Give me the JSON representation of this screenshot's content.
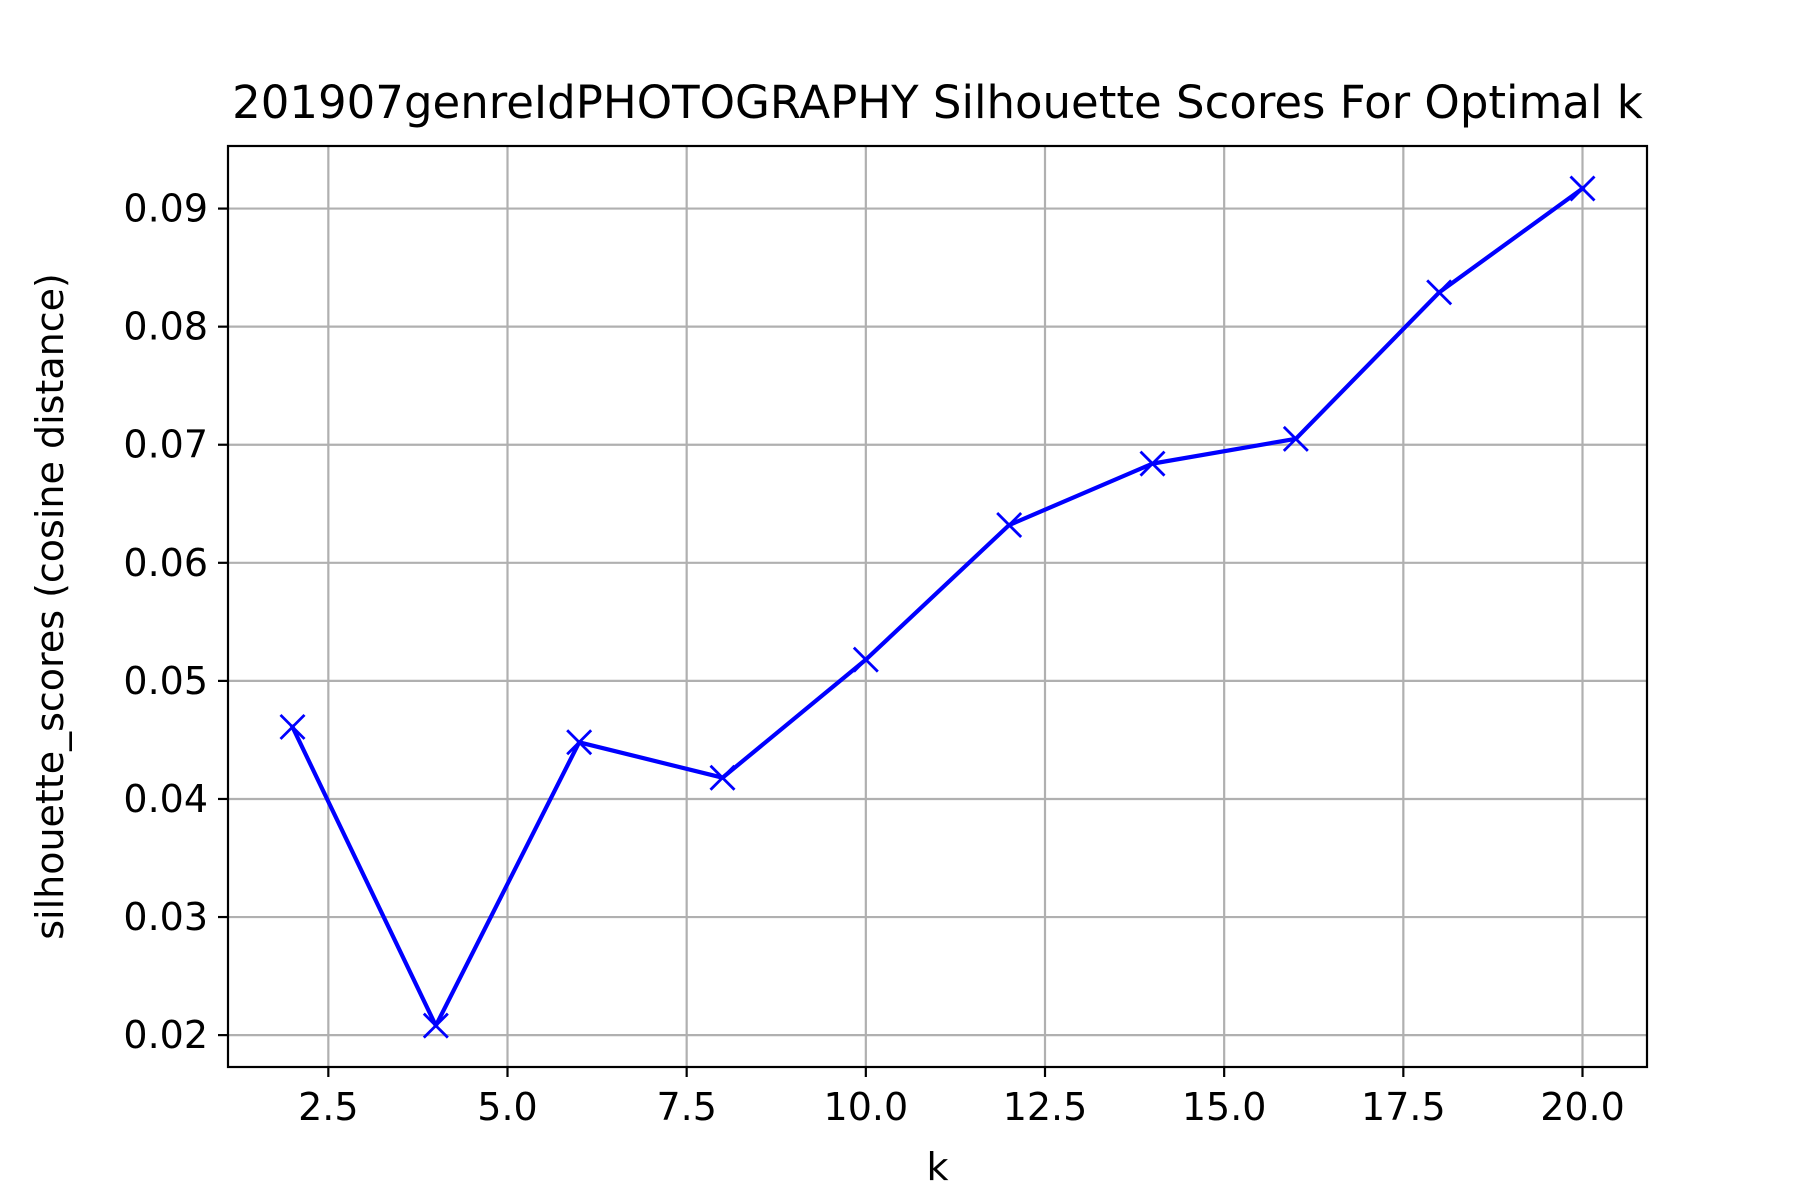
{
  "chart_data": {
    "type": "line",
    "title": "201907genreIdPHOTOGRAPHY Silhouette Scores For Optimal k",
    "xlabel": "k",
    "ylabel": "silhouette_scores (cosine distance)",
    "x": [
      2,
      4,
      6,
      8,
      10,
      12,
      14,
      16,
      18,
      20
    ],
    "series": [
      {
        "values": [
          0.0461,
          0.0208,
          0.0448,
          0.0418,
          0.0518,
          0.0632,
          0.0684,
          0.0705,
          0.0829,
          0.0917
        ],
        "color": "#0000ff",
        "marker": "x"
      }
    ],
    "xlim": [
      1.1,
      20.9
    ],
    "ylim": [
      0.0173,
      0.0953
    ],
    "xticks": [
      2.5,
      5.0,
      7.5,
      10.0,
      12.5,
      15.0,
      17.5,
      20.0
    ],
    "xtick_labels": [
      "2.5",
      "5.0",
      "7.5",
      "10.0",
      "12.5",
      "15.0",
      "17.5",
      "20.0"
    ],
    "yticks": [
      0.02,
      0.03,
      0.04,
      0.05,
      0.06,
      0.07,
      0.08,
      0.09
    ],
    "ytick_labels": [
      "0.02",
      "0.03",
      "0.04",
      "0.05",
      "0.06",
      "0.07",
      "0.08",
      "0.09"
    ],
    "grid": true,
    "grid_color": "#b0b0b0"
  }
}
